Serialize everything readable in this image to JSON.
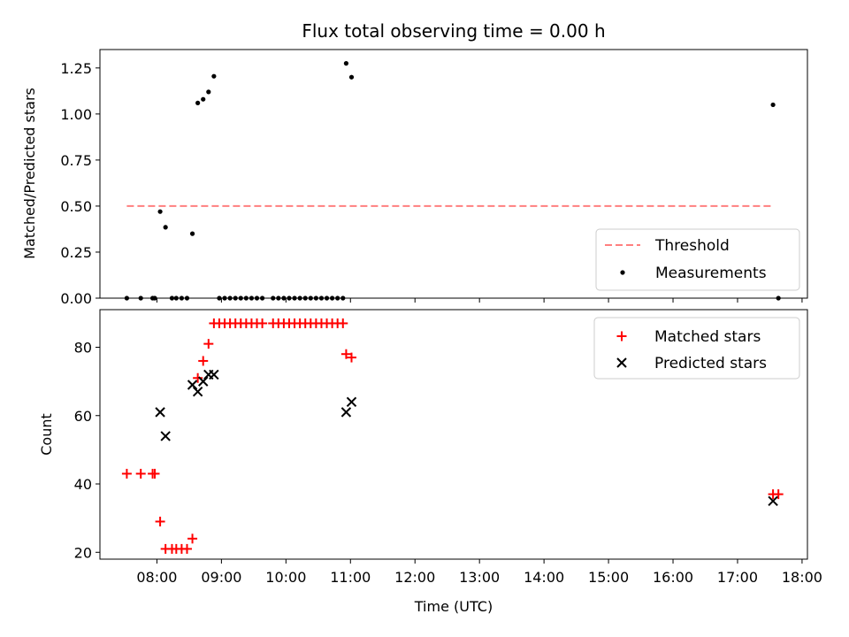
{
  "chart_data": [
    {
      "type": "scatter",
      "title": "Flux total observing time = 0.00 h",
      "xlabel": "",
      "ylabel": "Matched/Predicted stars",
      "xlim": [
        "07:07",
        "18:05"
      ],
      "ylim": [
        0.0,
        1.35
      ],
      "yticks": [
        0.0,
        0.25,
        0.5,
        0.75,
        1.0,
        1.25
      ],
      "ytick_labels": [
        "0.00",
        "0.25",
        "0.50",
        "0.75",
        "1.00",
        "1.25"
      ],
      "xticks": [
        "08:00",
        "09:00",
        "10:00",
        "11:00",
        "12:00",
        "13:00",
        "14:00",
        "15:00",
        "16:00",
        "17:00",
        "18:00"
      ],
      "legend": {
        "placement": "lower-right",
        "entries": [
          "Threshold",
          "Measurements"
        ]
      },
      "threshold": {
        "name": "Threshold",
        "color": "#ff7f7f",
        "style": "dashed",
        "x": [
          "07:32",
          "17:33"
        ],
        "y": 0.5
      },
      "series": [
        {
          "name": "Measurements",
          "color": "#000000",
          "marker": "dot",
          "points": [
            [
              "07:32",
              0
            ],
            [
              "07:45",
              0
            ],
            [
              "07:56",
              0
            ],
            [
              "07:58",
              0
            ],
            [
              "08:03",
              0.47
            ],
            [
              "08:08",
              0.385
            ],
            [
              "08:14",
              0
            ],
            [
              "08:18",
              0
            ],
            [
              "08:23",
              0
            ],
            [
              "08:28",
              0
            ],
            [
              "08:33",
              0.35
            ],
            [
              "08:38",
              1.06
            ],
            [
              "08:43",
              1.08
            ],
            [
              "08:48",
              1.12
            ],
            [
              "08:53",
              1.205
            ],
            [
              "08:58",
              0
            ],
            [
              "09:03",
              0
            ],
            [
              "09:08",
              0
            ],
            [
              "09:13",
              0
            ],
            [
              "09:18",
              0
            ],
            [
              "09:23",
              0
            ],
            [
              "09:28",
              0
            ],
            [
              "09:33",
              0
            ],
            [
              "09:38",
              0
            ],
            [
              "09:48",
              0
            ],
            [
              "09:53",
              0
            ],
            [
              "09:58",
              0
            ],
            [
              "10:03",
              0
            ],
            [
              "10:08",
              0
            ],
            [
              "10:13",
              0
            ],
            [
              "10:18",
              0
            ],
            [
              "10:23",
              0
            ],
            [
              "10:28",
              0
            ],
            [
              "10:33",
              0
            ],
            [
              "10:38",
              0
            ],
            [
              "10:43",
              0
            ],
            [
              "10:48",
              0
            ],
            [
              "10:53",
              0
            ],
            [
              "10:56",
              1.275
            ],
            [
              "11:01",
              1.2
            ],
            [
              "17:33",
              1.05
            ],
            [
              "17:38",
              0
            ]
          ]
        }
      ]
    },
    {
      "type": "scatter",
      "title": "",
      "xlabel": "Time (UTC)",
      "ylabel": "Count",
      "xlim": [
        "07:07",
        "18:05"
      ],
      "ylim": [
        18,
        91
      ],
      "yticks": [
        20,
        40,
        60,
        80
      ],
      "xticks": [
        "08:00",
        "09:00",
        "10:00",
        "11:00",
        "12:00",
        "13:00",
        "14:00",
        "15:00",
        "16:00",
        "17:00",
        "18:00"
      ],
      "legend": {
        "placement": "top-right",
        "entries": [
          "Matched stars",
          "Predicted stars"
        ]
      },
      "series": [
        {
          "name": "Matched stars",
          "color": "#ff0000",
          "marker": "plus",
          "points": [
            [
              "07:32",
              43
            ],
            [
              "07:45",
              43
            ],
            [
              "07:56",
              43
            ],
            [
              "07:58",
              43
            ],
            [
              "08:03",
              29
            ],
            [
              "08:08",
              21
            ],
            [
              "08:14",
              21
            ],
            [
              "08:18",
              21
            ],
            [
              "08:23",
              21
            ],
            [
              "08:28",
              21
            ],
            [
              "08:33",
              24
            ],
            [
              "08:38",
              71
            ],
            [
              "08:43",
              76
            ],
            [
              "08:48",
              81
            ],
            [
              "08:53",
              87
            ],
            [
              "08:58",
              87
            ],
            [
              "09:03",
              87
            ],
            [
              "09:08",
              87
            ],
            [
              "09:13",
              87
            ],
            [
              "09:18",
              87
            ],
            [
              "09:23",
              87
            ],
            [
              "09:28",
              87
            ],
            [
              "09:33",
              87
            ],
            [
              "09:38",
              87
            ],
            [
              "09:48",
              87
            ],
            [
              "09:53",
              87
            ],
            [
              "09:58",
              87
            ],
            [
              "10:03",
              87
            ],
            [
              "10:08",
              87
            ],
            [
              "10:13",
              87
            ],
            [
              "10:18",
              87
            ],
            [
              "10:23",
              87
            ],
            [
              "10:28",
              87
            ],
            [
              "10:33",
              87
            ],
            [
              "10:38",
              87
            ],
            [
              "10:43",
              87
            ],
            [
              "10:48",
              87
            ],
            [
              "10:53",
              87
            ],
            [
              "10:56",
              78
            ],
            [
              "11:01",
              77
            ],
            [
              "17:33",
              37
            ],
            [
              "17:38",
              37
            ]
          ]
        },
        {
          "name": "Predicted stars",
          "color": "#000000",
          "marker": "x",
          "points": [
            [
              "08:03",
              61
            ],
            [
              "08:08",
              54
            ],
            [
              "08:33",
              69
            ],
            [
              "08:38",
              67
            ],
            [
              "08:43",
              70
            ],
            [
              "08:48",
              72
            ],
            [
              "08:53",
              72
            ],
            [
              "10:56",
              61
            ],
            [
              "11:01",
              64
            ],
            [
              "17:33",
              35
            ]
          ]
        }
      ]
    }
  ]
}
